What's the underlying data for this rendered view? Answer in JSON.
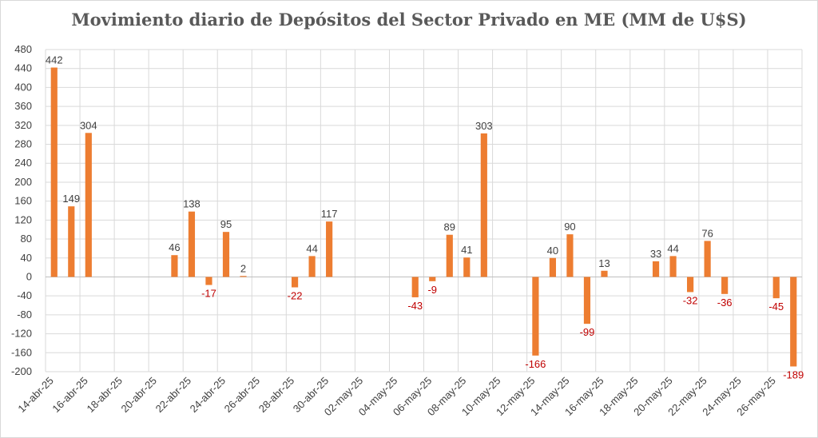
{
  "chart_data": {
    "type": "bar",
    "title": "Movimiento diario de Depósitos del Sector Privado en ME (MM de U$S)",
    "ylim": [
      -200,
      480
    ],
    "yticks": [
      480,
      440,
      400,
      360,
      320,
      280,
      240,
      200,
      160,
      120,
      80,
      40,
      0,
      -40,
      -80,
      -120,
      -160,
      -200
    ],
    "grid": true,
    "categories": [
      "14-abr-25",
      "15-abr-25",
      "16-abr-25",
      "17-abr-25",
      "18-abr-25",
      "19-abr-25",
      "20-abr-25",
      "21-abr-25",
      "22-abr-25",
      "23-abr-25",
      "24-abr-25",
      "25-abr-25",
      "26-abr-25",
      "27-abr-25",
      "28-abr-25",
      "29-abr-25",
      "30-abr-25",
      "01-may-25",
      "02-may-25",
      "03-may-25",
      "04-may-25",
      "05-may-25",
      "06-may-25",
      "07-may-25",
      "08-may-25",
      "09-may-25",
      "10-may-25",
      "11-may-25",
      "12-may-25",
      "13-may-25",
      "14-may-25",
      "15-may-25",
      "16-may-25",
      "17-may-25",
      "18-may-25",
      "19-may-25",
      "20-may-25",
      "21-may-25",
      "22-may-25",
      "23-may-25",
      "24-may-25",
      "25-may-25",
      "26-may-25",
      "27-may-25"
    ],
    "xtick_labels": [
      "14-abr-25",
      "16-abr-25",
      "18-abr-25",
      "20-abr-25",
      "22-abr-25",
      "24-abr-25",
      "26-abr-25",
      "28-abr-25",
      "30-abr-25",
      "02-may-25",
      "04-may-25",
      "06-may-25",
      "08-may-25",
      "10-may-25",
      "12-may-25",
      "14-may-25",
      "16-may-25",
      "18-may-25",
      "20-may-25",
      "22-may-25",
      "24-may-25",
      "26-may-25"
    ],
    "values": [
      442,
      149,
      304,
      null,
      null,
      null,
      null,
      46,
      138,
      -17,
      95,
      2,
      null,
      null,
      -22,
      44,
      117,
      null,
      null,
      null,
      null,
      -43,
      -9,
      89,
      41,
      303,
      null,
      null,
      -166,
      40,
      90,
      -99,
      13,
      null,
      null,
      33,
      44,
      -32,
      76,
      -36,
      null,
      null,
      -45,
      -189
    ],
    "colors": {
      "bar": "#ED7D31",
      "positive_label": "#404040",
      "negative_label": "#C00000",
      "grid": "#D9D9D9"
    }
  }
}
